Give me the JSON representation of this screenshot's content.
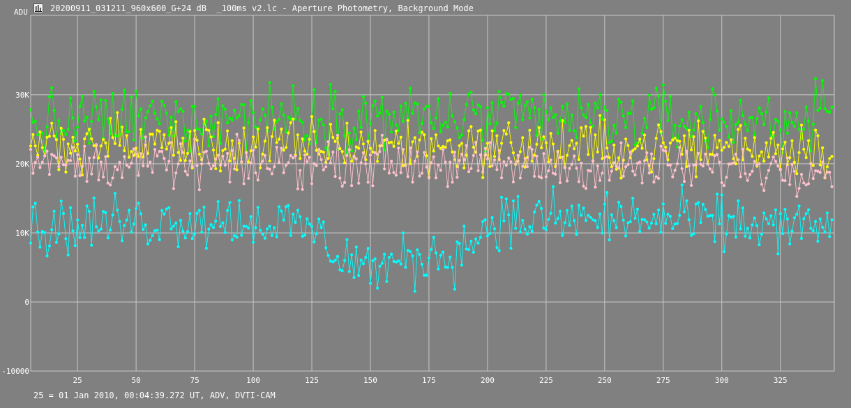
{
  "title": "20200911_031211_960x600_G+24 dB  _100ms v2.lc - Aperture Photometry, Background Mode",
  "footer": "25 = 01 Jan 2010, 00:04:39.272 UT, ADV, DVTI-CAM",
  "icon": "lightcurve-app-icon",
  "chart_data": {
    "type": "line",
    "ylabel": "ADU",
    "xlim": [
      5,
      348
    ],
    "ylim": [
      -10000,
      41500
    ],
    "x_ticks": [
      25,
      50,
      75,
      100,
      125,
      150,
      175,
      200,
      225,
      250,
      275,
      300,
      325
    ],
    "y_ticks": [
      {
        "value": 0,
        "label": "0"
      },
      {
        "value": 10000,
        "label": "10K"
      },
      {
        "value": 20000,
        "label": "20K"
      },
      {
        "value": 30000,
        "label": "30K"
      },
      {
        "value": -10000,
        "label": "-10000"
      }
    ],
    "grid": true,
    "colors": {
      "background": "#808080",
      "grid": "#c8c8c8",
      "text": "#ffffff"
    },
    "x_start": 5,
    "x_end": 347,
    "series": [
      {
        "color": "#00ff00",
        "profile": [
          [
            5,
            25500
          ],
          [
            50,
            26500
          ],
          [
            100,
            27000
          ],
          [
            150,
            26800
          ],
          [
            200,
            26500
          ],
          [
            250,
            26500
          ],
          [
            300,
            26300
          ],
          [
            347,
            26500
          ]
        ],
        "spread": 3300
      },
      {
        "color": "#ffff00",
        "profile": [
          [
            5,
            23000
          ],
          [
            50,
            23000
          ],
          [
            100,
            22500
          ],
          [
            150,
            22800
          ],
          [
            200,
            22500
          ],
          [
            250,
            22300
          ],
          [
            300,
            22500
          ],
          [
            347,
            22500
          ]
        ],
        "spread": 2800
      },
      {
        "color": "#ffc0cb",
        "profile": [
          [
            5,
            20000
          ],
          [
            50,
            20000
          ],
          [
            100,
            19800
          ],
          [
            150,
            20500
          ],
          [
            200,
            19800
          ],
          [
            250,
            19500
          ],
          [
            300,
            19500
          ],
          [
            347,
            19500
          ]
        ],
        "spread": 2300
      },
      {
        "color": "#00ffff",
        "profile": [
          [
            5,
            10500
          ],
          [
            40,
            11500
          ],
          [
            75,
            12000
          ],
          [
            110,
            11500
          ],
          [
            125,
            10500
          ],
          [
            140,
            6000
          ],
          [
            155,
            5000
          ],
          [
            175,
            6500
          ],
          [
            190,
            7500
          ],
          [
            200,
            11500
          ],
          [
            230,
            12000
          ],
          [
            260,
            12000
          ],
          [
            300,
            11500
          ],
          [
            347,
            10500
          ]
        ],
        "spread": 2800
      }
    ]
  }
}
